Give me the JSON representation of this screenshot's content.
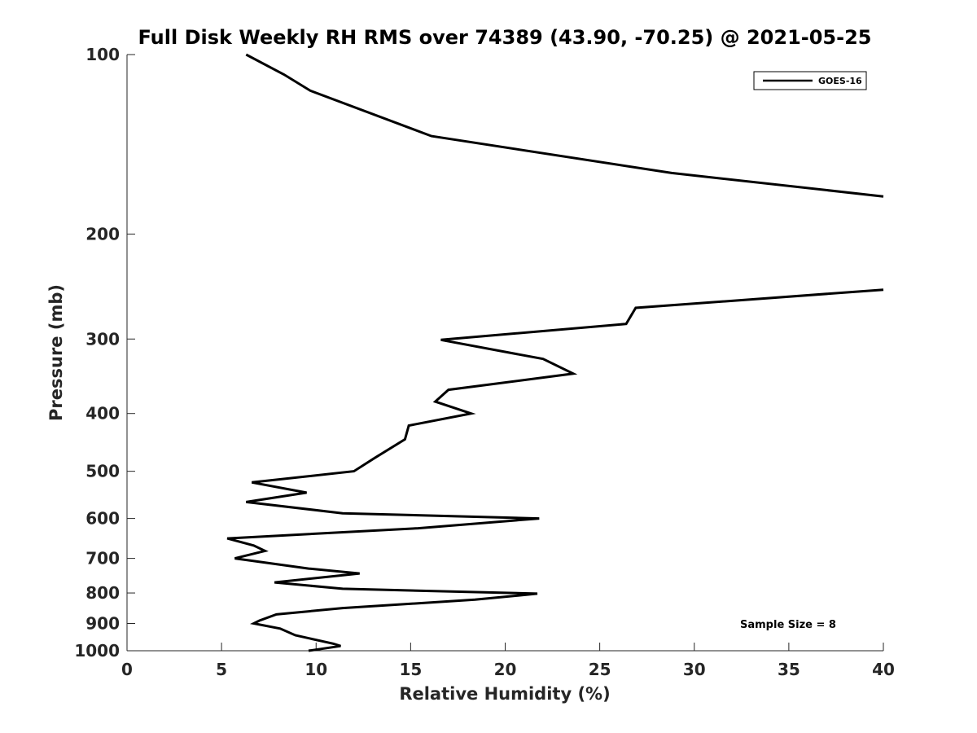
{
  "chart_data": {
    "type": "line",
    "title": "Full Disk Weekly RH RMS over 74389 (43.90, -70.25) @ 2021-05-25",
    "xlabel": "Relative Humidity (%)",
    "ylabel": "Pressure (mb)",
    "xlim": [
      0,
      40
    ],
    "ylim": [
      100,
      1000
    ],
    "y_scale": "log",
    "y_reversed": true,
    "x_ticks": [
      "0",
      "5",
      "10",
      "15",
      "20",
      "25",
      "30",
      "35",
      "40"
    ],
    "y_ticks": [
      "100",
      "200",
      "300",
      "400",
      "500",
      "600",
      "700",
      "800",
      "900",
      "1000"
    ],
    "grid": false,
    "legend_position": "top-right",
    "annotation": "Sample Size = 8",
    "series": [
      {
        "name": "GOES-16",
        "color": "#000000",
        "points": [
          [
            6.3,
            100
          ],
          [
            8.3,
            108
          ],
          [
            9.7,
            115
          ],
          [
            16.1,
            137
          ],
          [
            28.8,
            158
          ],
          [
            40.0,
            173
          ],
          [
            null,
            null
          ],
          [
            40.0,
            248
          ],
          [
            26.9,
            266
          ],
          [
            26.4,
            283
          ],
          [
            16.6,
            301
          ],
          [
            22.0,
            324
          ],
          [
            23.6,
            343
          ],
          [
            17.0,
            365
          ],
          [
            16.3,
            382
          ],
          [
            18.2,
            400
          ],
          [
            14.9,
            419
          ],
          [
            14.7,
            442
          ],
          [
            13.1,
            475
          ],
          [
            12.0,
            500
          ],
          [
            6.6,
            522
          ],
          [
            9.5,
            543
          ],
          [
            6.3,
            563
          ],
          [
            11.4,
            588
          ],
          [
            21.8,
            600
          ],
          [
            15.4,
            623
          ],
          [
            5.3,
            648
          ],
          [
            6.7,
            666
          ],
          [
            7.3,
            680
          ],
          [
            5.7,
            700
          ],
          [
            9.6,
            728
          ],
          [
            12.3,
            742
          ],
          [
            7.8,
            768
          ],
          [
            11.4,
            787
          ],
          [
            21.7,
            802
          ],
          [
            18.4,
            821
          ],
          [
            11.4,
            848
          ],
          [
            7.9,
            869
          ],
          [
            7.0,
            890
          ],
          [
            6.7,
            900
          ],
          [
            8.1,
            918
          ],
          [
            8.9,
            942
          ],
          [
            10.9,
            973
          ],
          [
            11.3,
            982
          ],
          [
            9.6,
            1000
          ]
        ]
      }
    ]
  }
}
